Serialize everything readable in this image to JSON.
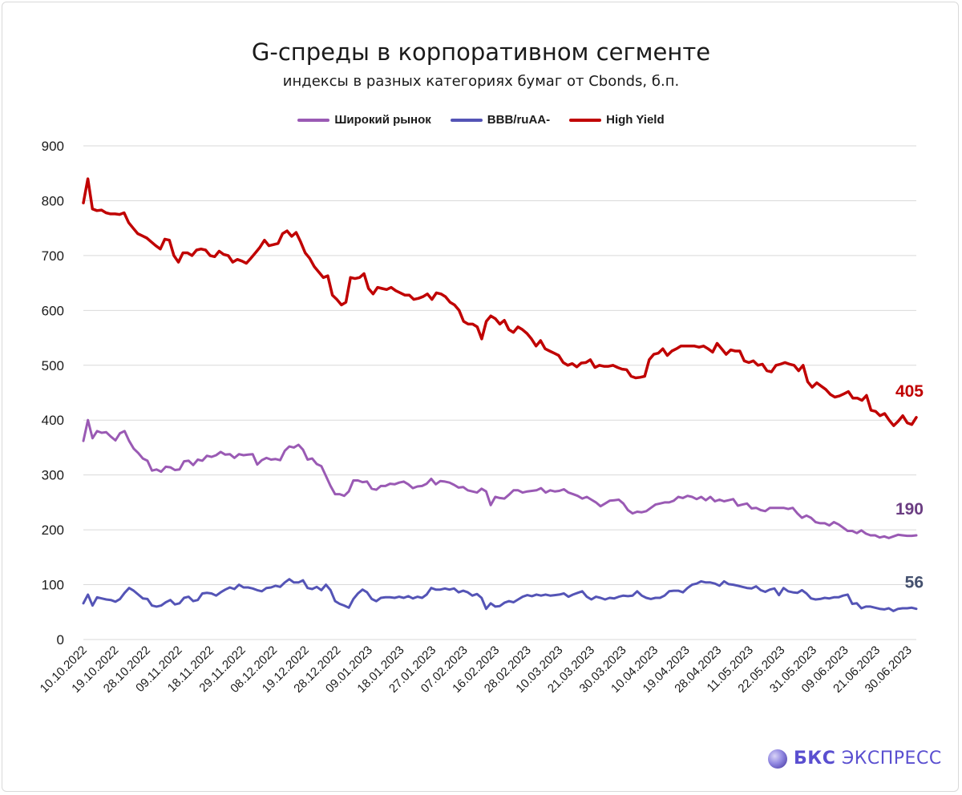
{
  "header": {
    "title": "G-спреды в корпоративном сегменте",
    "subtitle": "индексы в разных категориях бумаг от Cbonds, б.п."
  },
  "brand": {
    "bold": "БКС",
    "rest": "ЭКСПРЕСС"
  },
  "colors": {
    "broad": "#9a5ab4",
    "bbb": "#5454b6",
    "hy": "#c00000",
    "grid": "#d9d9d9"
  },
  "chart_data": {
    "type": "line",
    "ylim": [
      0,
      900
    ],
    "yticks": [
      0,
      100,
      200,
      300,
      400,
      500,
      600,
      700,
      800,
      900
    ],
    "grid": "horizontal",
    "legend_position": "top",
    "xticks": [
      "10.10.2022",
      "19.10.2022",
      "28.10.2022",
      "09.11.2022",
      "18.11.2022",
      "29.11.2022",
      "08.12.2022",
      "19.12.2022",
      "28.12.2022",
      "09.01.2023",
      "18.01.2023",
      "27.01.2023",
      "07.02.2023",
      "16.02.2023",
      "28.02.2023",
      "10.03.2023",
      "21.03.2023",
      "30.03.2023",
      "10.04.2023",
      "19.04.2023",
      "28.04.2023",
      "11.05.2023",
      "22.05.2023",
      "31.05.2023",
      "09.06.2023",
      "21.06.2023",
      "30.06.2023"
    ],
    "series": [
      {
        "name": "Широкий рынок",
        "key": "broad",
        "end_label": "190",
        "values": [
          362,
          400,
          367,
          380,
          377,
          378,
          370,
          363,
          376,
          380,
          362,
          348,
          340,
          330,
          326,
          308,
          310,
          306,
          315,
          314,
          309,
          310,
          325,
          326,
          318,
          328,
          326,
          335,
          333,
          336,
          342,
          337,
          338,
          331,
          338,
          336,
          337,
          338,
          319,
          327,
          331,
          328,
          329,
          327,
          344,
          352,
          350,
          355,
          346,
          328,
          330,
          320,
          316,
          298,
          280,
          265,
          265,
          262,
          270,
          290,
          290,
          287,
          288,
          275,
          273,
          280,
          280,
          284,
          283,
          286,
          288,
          283,
          276,
          279,
          280,
          284,
          293,
          283,
          289,
          288,
          286,
          282,
          277,
          278,
          272,
          270,
          268,
          275,
          270,
          245,
          260,
          258,
          257,
          264,
          272,
          272,
          268,
          270,
          271,
          272,
          276,
          268,
          272,
          270,
          271,
          274,
          268,
          265,
          262,
          257,
          260,
          255,
          250,
          243,
          248,
          253,
          254,
          255,
          248,
          236,
          230,
          233,
          232,
          234,
          240,
          246,
          248,
          250,
          250,
          253,
          260,
          258,
          262,
          260,
          256,
          260,
          254,
          260,
          252,
          255,
          252,
          254,
          256,
          244,
          246,
          248,
          239,
          240,
          236,
          234,
          240,
          240,
          240,
          240,
          238,
          240,
          230,
          222,
          226,
          222,
          214,
          212,
          212,
          208,
          214,
          210,
          204,
          198,
          198,
          194,
          199,
          193,
          190,
          190,
          186,
          188,
          185,
          188,
          191,
          190,
          189,
          189,
          190
        ]
      },
      {
        "name": "BBB/ruAA-",
        "key": "bbb",
        "end_label": "56",
        "values": [
          66,
          82,
          62,
          77,
          75,
          73,
          72,
          69,
          74,
          85,
          94,
          89,
          82,
          75,
          74,
          62,
          60,
          62,
          68,
          72,
          64,
          66,
          76,
          78,
          70,
          72,
          84,
          85,
          84,
          80,
          86,
          91,
          95,
          92,
          100,
          95,
          95,
          93,
          90,
          88,
          94,
          95,
          98,
          96,
          104,
          110,
          104,
          104,
          108,
          94,
          92,
          96,
          90,
          100,
          90,
          70,
          65,
          62,
          58,
          74,
          84,
          91,
          86,
          74,
          70,
          76,
          77,
          77,
          76,
          78,
          76,
          79,
          75,
          78,
          76,
          82,
          94,
          91,
          91,
          93,
          91,
          93,
          86,
          89,
          86,
          80,
          83,
          76,
          56,
          66,
          60,
          61,
          67,
          70,
          68,
          73,
          78,
          81,
          79,
          82,
          80,
          82,
          80,
          81,
          82,
          84,
          78,
          82,
          85,
          88,
          78,
          73,
          78,
          76,
          73,
          76,
          75,
          78,
          80,
          79,
          80,
          88,
          80,
          76,
          74,
          76,
          76,
          80,
          88,
          89,
          89,
          86,
          94,
          100,
          102,
          106,
          104,
          104,
          102,
          98,
          106,
          101,
          100,
          98,
          96,
          94,
          93,
          97,
          90,
          87,
          91,
          93,
          81,
          94,
          88,
          86,
          85,
          90,
          84,
          75,
          73,
          74,
          76,
          75,
          77,
          77,
          80,
          82,
          65,
          66,
          57,
          60,
          60,
          58,
          56,
          55,
          57,
          52,
          56,
          57,
          57,
          58,
          56
        ]
      },
      {
        "name": "High Yield",
        "key": "hy",
        "end_label": "405",
        "values": [
          796,
          840,
          785,
          782,
          783,
          778,
          776,
          776,
          775,
          778,
          760,
          750,
          740,
          736,
          732,
          725,
          718,
          712,
          730,
          728,
          700,
          688,
          705,
          705,
          700,
          710,
          712,
          710,
          700,
          698,
          708,
          702,
          700,
          688,
          693,
          690,
          686,
          695,
          705,
          715,
          728,
          718,
          720,
          722,
          740,
          745,
          735,
          742,
          725,
          705,
          695,
          680,
          670,
          660,
          663,
          628,
          620,
          610,
          615,
          660,
          658,
          660,
          667,
          640,
          630,
          642,
          640,
          638,
          642,
          636,
          632,
          628,
          628,
          620,
          622,
          625,
          630,
          620,
          632,
          630,
          625,
          615,
          610,
          600,
          580,
          575,
          575,
          570,
          548,
          580,
          590,
          585,
          575,
          582,
          565,
          560,
          570,
          565,
          558,
          548,
          535,
          545,
          530,
          526,
          522,
          518,
          505,
          500,
          503,
          497,
          504,
          505,
          510,
          496,
          500,
          498,
          498,
          500,
          496,
          493,
          492,
          480,
          477,
          478,
          480,
          510,
          520,
          522,
          530,
          518,
          526,
          530,
          535,
          535,
          535,
          535,
          533,
          535,
          530,
          524,
          540,
          530,
          520,
          528,
          526,
          526,
          508,
          505,
          508,
          500,
          502,
          490,
          488,
          500,
          502,
          505,
          502,
          500,
          490,
          500,
          470,
          460,
          468,
          462,
          456,
          447,
          442,
          444,
          448,
          452,
          440,
          440,
          436,
          445,
          418,
          416,
          408,
          412,
          400,
          390,
          398,
          408,
          395,
          392,
          405
        ]
      }
    ]
  }
}
